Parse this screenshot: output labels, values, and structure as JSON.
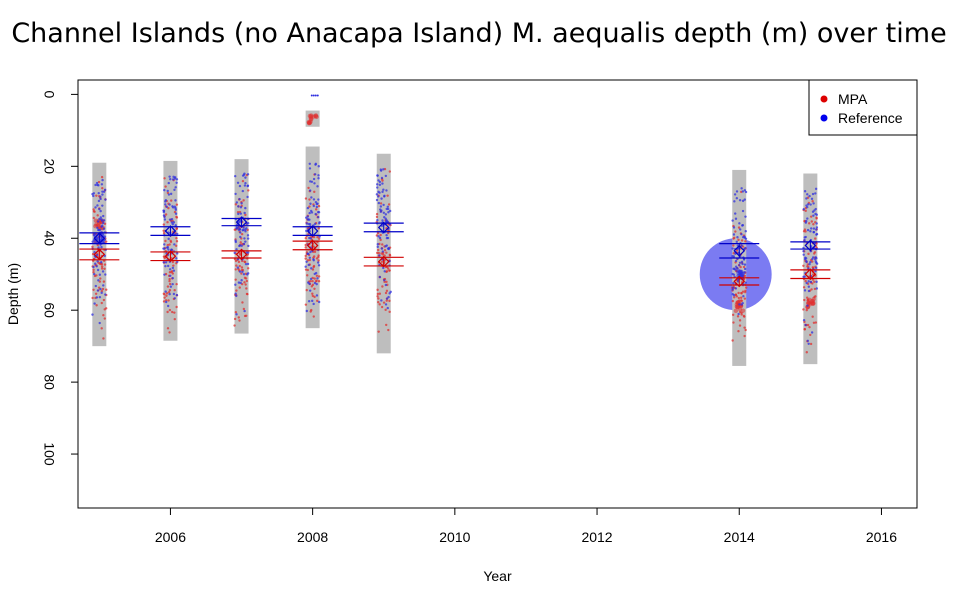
{
  "chart_data": {
    "type": "scatter",
    "title": "Channel Islands (no Anacapa Island) M. aequalis depth (m) over time",
    "xlabel": "Year",
    "ylabel": "Depth (m)",
    "xlim": [
      2004.7,
      2016.5
    ],
    "ylim": [
      115,
      -4
    ],
    "y_reversed": true,
    "x_ticks": [
      2006,
      2008,
      2010,
      2012,
      2014,
      2016
    ],
    "y_ticks": [
      0,
      20,
      40,
      60,
      80,
      100
    ],
    "legend": {
      "position": "top-right",
      "entries": [
        {
          "label": "MPA",
          "color": "#dd0000"
        },
        {
          "label": "Reference",
          "color": "#0000ee"
        }
      ]
    },
    "colors": {
      "mpa": "#e03030",
      "reference": "#3030e0",
      "range_bar": "#bebebe",
      "highlight_circle": "#6464f0"
    },
    "groups": [
      {
        "year": 2005,
        "range": [
          19,
          70
        ],
        "mpa_mean": 44.5,
        "mpa_ci": [
          43,
          46
        ],
        "ref_mean": 40,
        "ref_ci": [
          38.5,
          41.5
        ],
        "mpa_cluster": 36,
        "ref_cluster": 40
      },
      {
        "year": 2006,
        "range": [
          18.5,
          68.5
        ],
        "mpa_mean": 45,
        "mpa_ci": [
          43.8,
          46.2
        ],
        "ref_mean": 38,
        "ref_ci": [
          36.8,
          39.2
        ],
        "mpa_cluster": null,
        "ref_cluster": null
      },
      {
        "year": 2007,
        "range": [
          18,
          66.5
        ],
        "mpa_mean": 44.5,
        "mpa_ci": [
          43.5,
          45.5
        ],
        "ref_mean": 35.5,
        "ref_ci": [
          34.5,
          36.5
        ],
        "mpa_cluster": null,
        "ref_cluster": null
      },
      {
        "year": 2008,
        "range": [
          14.5,
          65
        ],
        "mpa_mean": 42,
        "mpa_ci": [
          40.8,
          43.2
        ],
        "ref_mean": 38,
        "ref_ci": [
          36.8,
          39.2
        ],
        "mpa_cluster": 7,
        "ref_cluster": null
      },
      {
        "year": 2009,
        "range": [
          16.5,
          72
        ],
        "mpa_mean": 46.5,
        "mpa_ci": [
          45.3,
          47.7
        ],
        "ref_mean": 37,
        "ref_ci": [
          35.8,
          38.2
        ],
        "mpa_cluster": null,
        "ref_cluster": null
      },
      {
        "year": 2014,
        "range": [
          21,
          75.5
        ],
        "mpa_mean": 52,
        "mpa_ci": [
          51,
          53
        ],
        "ref_mean": 43.5,
        "ref_ci": [
          41.5,
          45.5
        ],
        "mpa_cluster": 59,
        "ref_cluster": 50
      },
      {
        "year": 2015,
        "range": [
          22,
          75
        ],
        "mpa_mean": 50,
        "mpa_ci": [
          48.8,
          51.2
        ],
        "ref_mean": 42,
        "ref_ci": [
          41,
          43
        ],
        "mpa_cluster": 58,
        "ref_cluster": null
      }
    ],
    "outlier_bar": {
      "year": 2008,
      "range": [
        4.5,
        9
      ]
    },
    "outlier_points": [
      {
        "x": 2008.03,
        "y": 0.3,
        "series": "reference"
      }
    ],
    "highlight_circle": {
      "x": 2013.95,
      "y": 50,
      "radius_y": 10
    }
  }
}
